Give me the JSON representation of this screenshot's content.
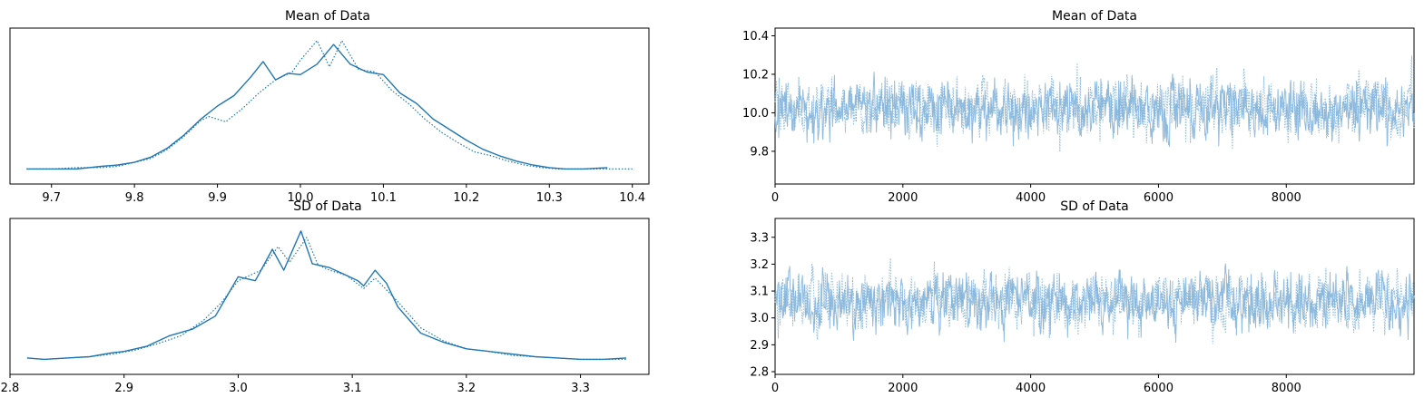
{
  "colors": {
    "series": "#1f77b4",
    "trace": "#7fb2d9",
    "axes": "#000000"
  },
  "chart_data": [
    {
      "type": "line",
      "title": "Mean of Data",
      "xlabel": "",
      "ylabel": "",
      "xlim": [
        9.65,
        10.42
      ],
      "ylim": [
        0,
        1
      ],
      "xticks": [
        9.7,
        9.8,
        9.9,
        10.0,
        10.1,
        10.2,
        10.3,
        10.4
      ],
      "xtick_labels": [
        "9.7",
        "9.8",
        "9.9",
        "10.0",
        "10.1",
        "10.2",
        "10.3",
        "10.4"
      ],
      "yticks_visible": false,
      "series": [
        {
          "style": "solid",
          "x": [
            9.67,
            9.7,
            9.73,
            9.76,
            9.78,
            9.8,
            9.82,
            9.84,
            9.86,
            9.88,
            9.9,
            9.92,
            9.94,
            9.955,
            9.97,
            9.985,
            10.0,
            10.02,
            10.04,
            10.06,
            10.08,
            10.1,
            10.12,
            10.14,
            10.16,
            10.18,
            10.2,
            10.22,
            10.24,
            10.26,
            10.28,
            10.3,
            10.32,
            10.34,
            10.37
          ],
          "y": [
            0.02,
            0.02,
            0.02,
            0.04,
            0.05,
            0.07,
            0.11,
            0.18,
            0.28,
            0.4,
            0.5,
            0.58,
            0.72,
            0.84,
            0.7,
            0.75,
            0.74,
            0.82,
            0.97,
            0.82,
            0.76,
            0.74,
            0.6,
            0.52,
            0.4,
            0.32,
            0.24,
            0.17,
            0.12,
            0.08,
            0.05,
            0.03,
            0.02,
            0.02,
            0.03
          ]
        },
        {
          "style": "dotted",
          "x": [
            9.67,
            9.7,
            9.73,
            9.76,
            9.78,
            9.8,
            9.82,
            9.84,
            9.86,
            9.88,
            9.89,
            9.91,
            9.93,
            9.95,
            9.97,
            9.99,
            10.0,
            10.02,
            10.035,
            10.05,
            10.07,
            10.09,
            10.11,
            10.13,
            10.15,
            10.17,
            10.19,
            10.21,
            10.23,
            10.25,
            10.27,
            10.29,
            10.31,
            10.34,
            10.4
          ],
          "y": [
            0.02,
            0.02,
            0.03,
            0.03,
            0.04,
            0.07,
            0.1,
            0.17,
            0.27,
            0.39,
            0.42,
            0.38,
            0.48,
            0.6,
            0.7,
            0.76,
            0.85,
            1.0,
            0.8,
            1.0,
            0.78,
            0.76,
            0.62,
            0.52,
            0.4,
            0.3,
            0.22,
            0.15,
            0.12,
            0.08,
            0.05,
            0.03,
            0.02,
            0.02,
            0.02
          ]
        }
      ]
    },
    {
      "type": "line",
      "title": "Mean of Data",
      "xlabel": "",
      "ylabel": "",
      "xlim": [
        0,
        9999
      ],
      "ylim": [
        9.63,
        10.44
      ],
      "xticks": [
        0,
        2000,
        4000,
        6000,
        8000
      ],
      "xtick_labels": [
        "0",
        "2000",
        "4000",
        "6000",
        "8000"
      ],
      "yticks": [
        9.8,
        10.0,
        10.2,
        10.4
      ],
      "ytick_labels": [
        "9.8",
        "10.0",
        "10.2",
        "10.4"
      ],
      "trace": {
        "draws": 10000,
        "center": 10.02,
        "sd": 0.1,
        "min": 9.67,
        "max": 10.4
      }
    },
    {
      "type": "line",
      "title": "SD of Data",
      "xlabel": "",
      "ylabel": "",
      "xlim": [
        2.8,
        3.36
      ],
      "ylim": [
        0,
        1
      ],
      "xticks": [
        2.8,
        2.9,
        3.0,
        3.1,
        3.2,
        3.3
      ],
      "xtick_labels": [
        "2.8",
        "2.9",
        "3.0",
        "3.1",
        "3.2",
        "3.3"
      ],
      "yticks_visible": false,
      "series": [
        {
          "style": "solid",
          "x": [
            2.815,
            2.83,
            2.85,
            2.87,
            2.89,
            2.9,
            2.92,
            2.94,
            2.96,
            2.98,
            2.99,
            3.0,
            3.015,
            3.03,
            3.04,
            3.055,
            3.065,
            3.08,
            3.095,
            3.105,
            3.11,
            3.12,
            3.13,
            3.14,
            3.16,
            3.18,
            3.2,
            3.22,
            3.24,
            3.26,
            3.28,
            3.3,
            3.32,
            3.34
          ],
          "y": [
            0.03,
            0.02,
            0.03,
            0.04,
            0.07,
            0.08,
            0.12,
            0.2,
            0.25,
            0.35,
            0.5,
            0.65,
            0.62,
            0.86,
            0.7,
            1.0,
            0.75,
            0.72,
            0.66,
            0.62,
            0.58,
            0.7,
            0.6,
            0.42,
            0.22,
            0.15,
            0.1,
            0.08,
            0.06,
            0.04,
            0.03,
            0.02,
            0.02,
            0.03
          ]
        },
        {
          "style": "dotted",
          "x": [
            2.815,
            2.83,
            2.85,
            2.87,
            2.89,
            2.91,
            2.93,
            2.95,
            2.97,
            2.985,
            3.0,
            3.02,
            3.035,
            3.045,
            3.06,
            3.07,
            3.08,
            3.095,
            3.11,
            3.12,
            3.14,
            3.16,
            3.18,
            3.2,
            3.22,
            3.24,
            3.26,
            3.28,
            3.3,
            3.34
          ],
          "y": [
            0.03,
            0.02,
            0.03,
            0.04,
            0.06,
            0.09,
            0.14,
            0.2,
            0.32,
            0.45,
            0.62,
            0.7,
            0.88,
            0.76,
            0.95,
            0.74,
            0.7,
            0.66,
            0.56,
            0.64,
            0.46,
            0.26,
            0.16,
            0.1,
            0.08,
            0.05,
            0.04,
            0.03,
            0.02,
            0.02
          ]
        }
      ]
    },
    {
      "type": "line",
      "title": "SD of Data",
      "xlabel": "",
      "ylabel": "",
      "xlim": [
        0,
        9999
      ],
      "ylim": [
        2.79,
        3.37
      ],
      "xticks": [
        0,
        2000,
        4000,
        6000,
        8000
      ],
      "xtick_labels": [
        "0",
        "2000",
        "4000",
        "6000",
        "8000"
      ],
      "yticks": [
        2.8,
        2.9,
        3.0,
        3.1,
        3.2,
        3.3
      ],
      "ytick_labels": [
        "2.8",
        "2.9",
        "3.0",
        "3.1",
        "3.2",
        "3.3"
      ],
      "trace": {
        "draws": 10000,
        "center": 3.06,
        "sd": 0.07,
        "min": 2.81,
        "max": 3.34
      }
    }
  ]
}
